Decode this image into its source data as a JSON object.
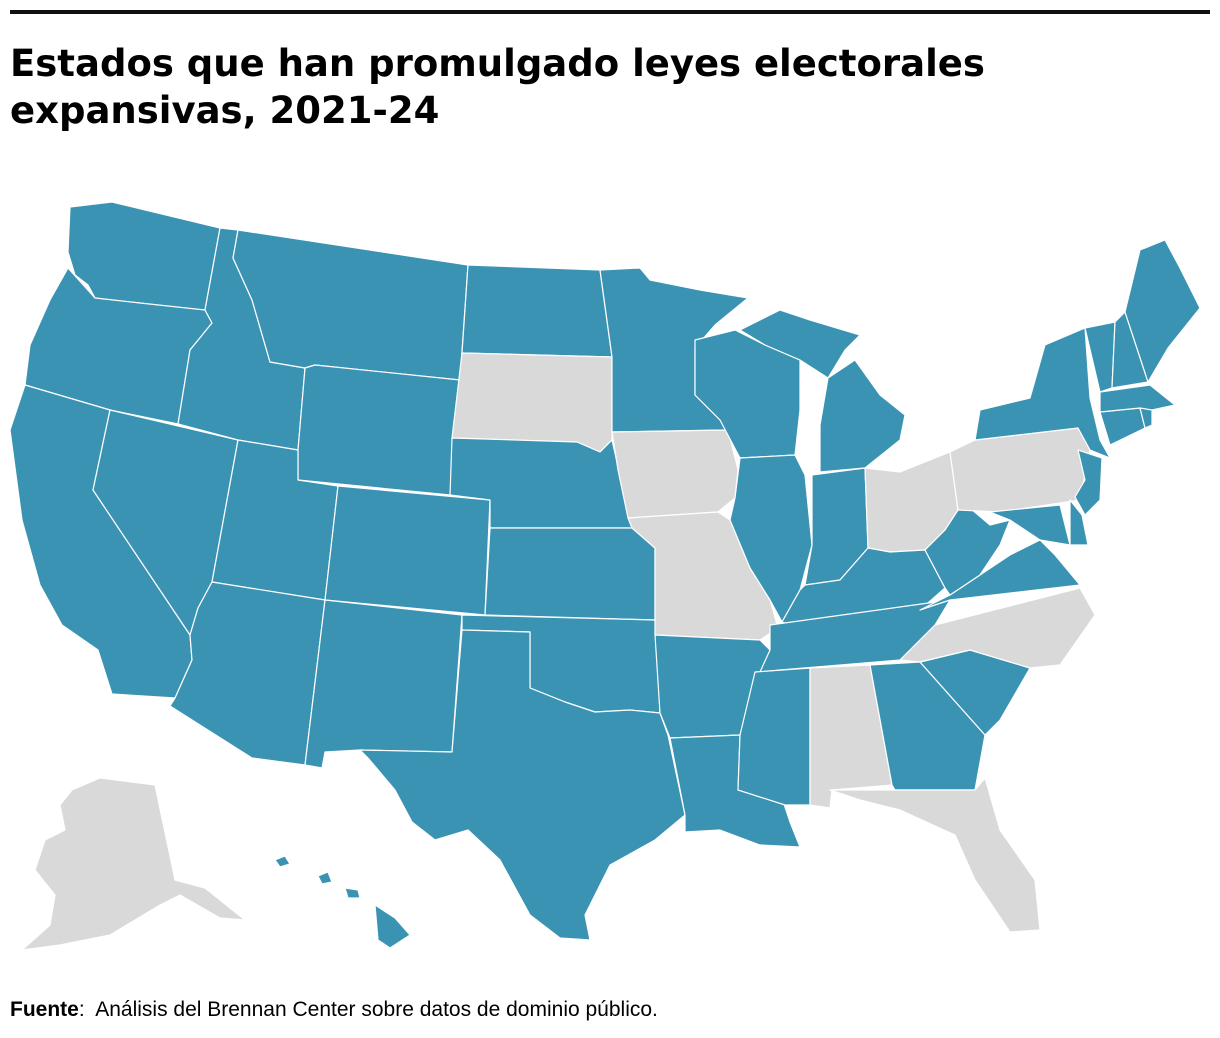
{
  "title": "Estados que han promulgado leyes electorales expansivas, 2021-24",
  "colors": {
    "enacted": "#3a93b3",
    "not_enacted": "#d9d9d9",
    "border": "#ffffff",
    "rule": "#111111"
  },
  "states": [
    {
      "code": "WA",
      "status": "enacted"
    },
    {
      "code": "OR",
      "status": "enacted"
    },
    {
      "code": "CA",
      "status": "enacted"
    },
    {
      "code": "NV",
      "status": "enacted"
    },
    {
      "code": "ID",
      "status": "enacted"
    },
    {
      "code": "MT",
      "status": "enacted"
    },
    {
      "code": "WY",
      "status": "enacted"
    },
    {
      "code": "UT",
      "status": "enacted"
    },
    {
      "code": "AZ",
      "status": "enacted"
    },
    {
      "code": "CO",
      "status": "enacted"
    },
    {
      "code": "NM",
      "status": "enacted"
    },
    {
      "code": "ND",
      "status": "enacted"
    },
    {
      "code": "SD",
      "status": "not_enacted"
    },
    {
      "code": "NE",
      "status": "enacted"
    },
    {
      "code": "KS",
      "status": "enacted"
    },
    {
      "code": "OK",
      "status": "enacted"
    },
    {
      "code": "TX",
      "status": "enacted"
    },
    {
      "code": "MN",
      "status": "enacted"
    },
    {
      "code": "IA",
      "status": "not_enacted"
    },
    {
      "code": "MO",
      "status": "not_enacted"
    },
    {
      "code": "AR",
      "status": "enacted"
    },
    {
      "code": "LA",
      "status": "enacted"
    },
    {
      "code": "WI",
      "status": "enacted"
    },
    {
      "code": "IL",
      "status": "enacted"
    },
    {
      "code": "MI",
      "status": "enacted"
    },
    {
      "code": "IN",
      "status": "enacted"
    },
    {
      "code": "OH",
      "status": "not_enacted"
    },
    {
      "code": "KY",
      "status": "enacted"
    },
    {
      "code": "TN",
      "status": "enacted"
    },
    {
      "code": "MS",
      "status": "enacted"
    },
    {
      "code": "AL",
      "status": "not_enacted"
    },
    {
      "code": "GA",
      "status": "enacted"
    },
    {
      "code": "FL",
      "status": "not_enacted"
    },
    {
      "code": "SC",
      "status": "enacted"
    },
    {
      "code": "NC",
      "status": "not_enacted"
    },
    {
      "code": "VA",
      "status": "enacted"
    },
    {
      "code": "WV",
      "status": "enacted"
    },
    {
      "code": "PA",
      "status": "not_enacted"
    },
    {
      "code": "NY",
      "status": "enacted"
    },
    {
      "code": "NJ",
      "status": "enacted"
    },
    {
      "code": "DE",
      "status": "enacted"
    },
    {
      "code": "MD",
      "status": "enacted"
    },
    {
      "code": "CT",
      "status": "enacted"
    },
    {
      "code": "RI",
      "status": "enacted"
    },
    {
      "code": "MA",
      "status": "enacted"
    },
    {
      "code": "VT",
      "status": "enacted"
    },
    {
      "code": "NH",
      "status": "enacted"
    },
    {
      "code": "ME",
      "status": "enacted"
    },
    {
      "code": "AK",
      "status": "not_enacted"
    },
    {
      "code": "HI",
      "status": "enacted"
    }
  ],
  "footer": {
    "source_label": "Fuente",
    "source_text": "Análisis del Brennan Center sobre datos de dominio público."
  }
}
